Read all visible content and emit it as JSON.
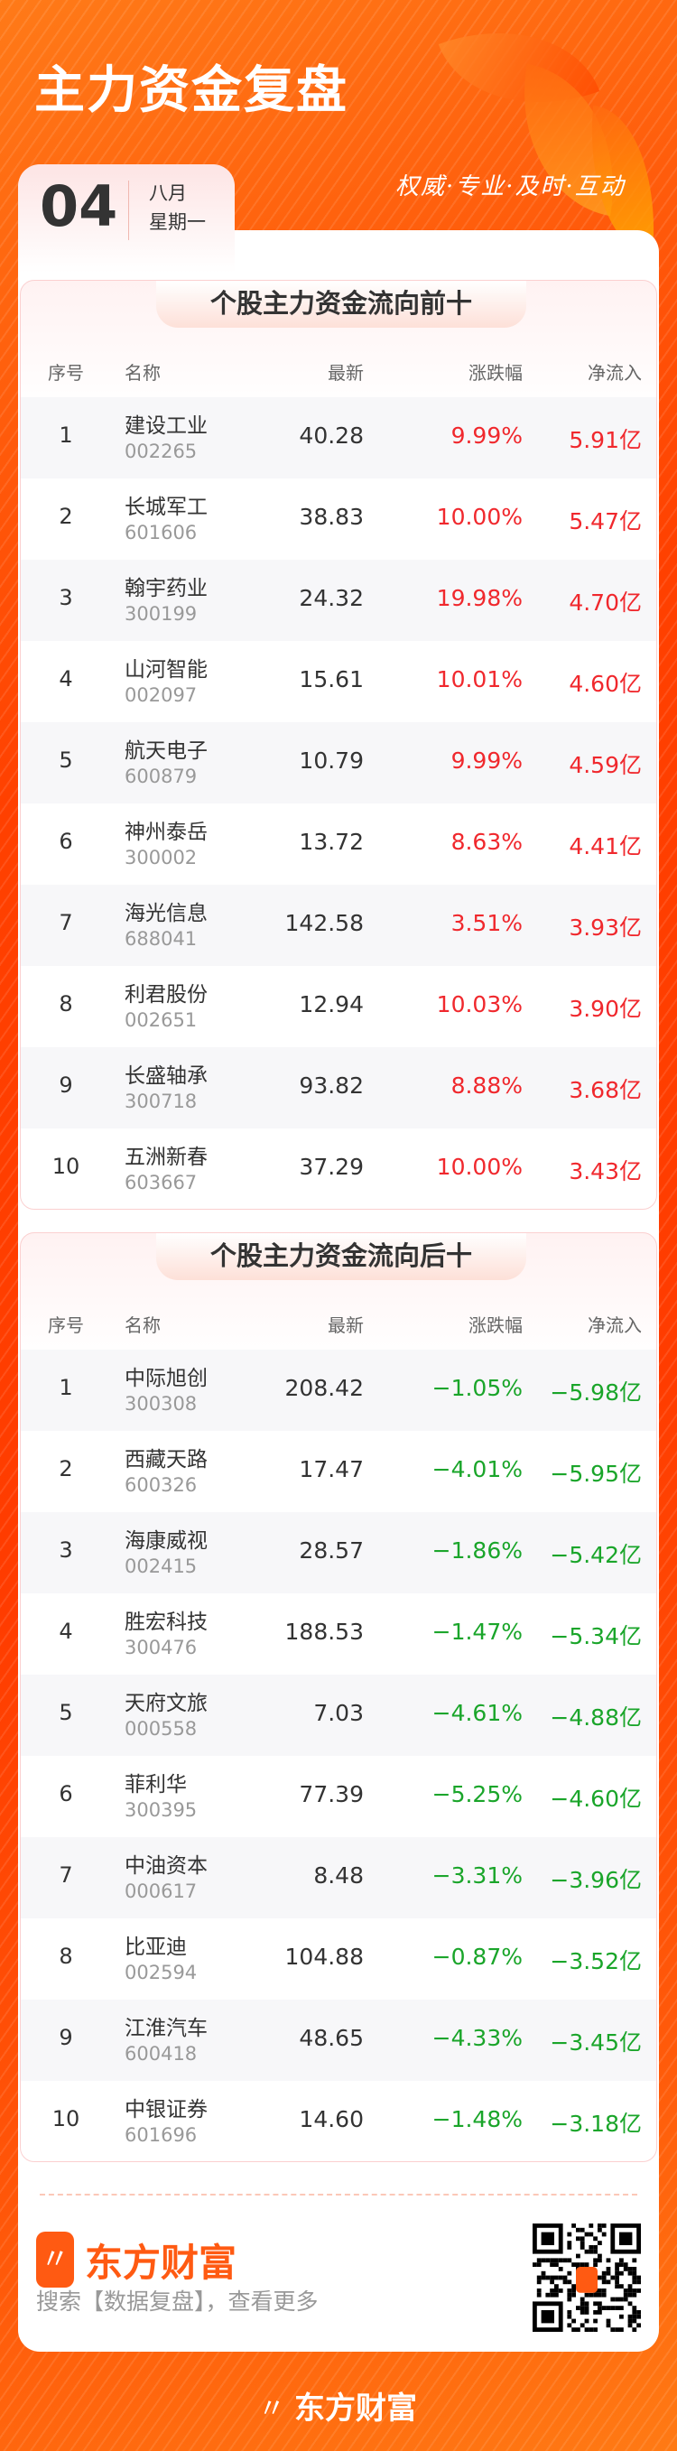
{
  "header": {
    "title": "主力资金复盘",
    "tagline": "权威·专业·及时·互动"
  },
  "date": {
    "day": "04",
    "month": "八月",
    "weekday": "星期一"
  },
  "columns": {
    "seq": "序号",
    "name": "名称",
    "latest": "最新",
    "change": "涨跌幅",
    "net": "净流入"
  },
  "colors": {
    "up": "#f0282d",
    "down": "#1aa52a",
    "brand": "#ff5a12"
  },
  "top": {
    "title": "个股主力资金流向前十",
    "rows": [
      {
        "seq": "1",
        "name": "建设工业",
        "code": "002265",
        "latest": "40.28",
        "change": "9.99%",
        "net": "5.91亿"
      },
      {
        "seq": "2",
        "name": "长城军工",
        "code": "601606",
        "latest": "38.83",
        "change": "10.00%",
        "net": "5.47亿"
      },
      {
        "seq": "3",
        "name": "翰宇药业",
        "code": "300199",
        "latest": "24.32",
        "change": "19.98%",
        "net": "4.70亿"
      },
      {
        "seq": "4",
        "name": "山河智能",
        "code": "002097",
        "latest": "15.61",
        "change": "10.01%",
        "net": "4.60亿"
      },
      {
        "seq": "5",
        "name": "航天电子",
        "code": "600879",
        "latest": "10.79",
        "change": "9.99%",
        "net": "4.59亿"
      },
      {
        "seq": "6",
        "name": "神州泰岳",
        "code": "300002",
        "latest": "13.72",
        "change": "8.63%",
        "net": "4.41亿"
      },
      {
        "seq": "7",
        "name": "海光信息",
        "code": "688041",
        "latest": "142.58",
        "change": "3.51%",
        "net": "3.93亿"
      },
      {
        "seq": "8",
        "name": "利君股份",
        "code": "002651",
        "latest": "12.94",
        "change": "10.03%",
        "net": "3.90亿"
      },
      {
        "seq": "9",
        "name": "长盛轴承",
        "code": "300718",
        "latest": "93.82",
        "change": "8.88%",
        "net": "3.68亿"
      },
      {
        "seq": "10",
        "name": "五洲新春",
        "code": "603667",
        "latest": "37.29",
        "change": "10.00%",
        "net": "3.43亿"
      }
    ]
  },
  "bottom": {
    "title": "个股主力资金流向后十",
    "rows": [
      {
        "seq": "1",
        "name": "中际旭创",
        "code": "300308",
        "latest": "208.42",
        "change": "−1.05%",
        "net": "−5.98亿"
      },
      {
        "seq": "2",
        "name": "西藏天路",
        "code": "600326",
        "latest": "17.47",
        "change": "−4.01%",
        "net": "−5.95亿"
      },
      {
        "seq": "3",
        "name": "海康威视",
        "code": "002415",
        "latest": "28.57",
        "change": "−1.86%",
        "net": "−5.42亿"
      },
      {
        "seq": "4",
        "name": "胜宏科技",
        "code": "300476",
        "latest": "188.53",
        "change": "−1.47%",
        "net": "−5.34亿"
      },
      {
        "seq": "5",
        "name": "天府文旅",
        "code": "000558",
        "latest": "7.03",
        "change": "−4.61%",
        "net": "−4.88亿"
      },
      {
        "seq": "6",
        "name": "菲利华",
        "code": "300395",
        "latest": "77.39",
        "change": "−5.25%",
        "net": "−4.60亿"
      },
      {
        "seq": "7",
        "name": "中油资本",
        "code": "000617",
        "latest": "8.48",
        "change": "−3.31%",
        "net": "−3.96亿"
      },
      {
        "seq": "8",
        "name": "比亚迪",
        "code": "002594",
        "latest": "104.88",
        "change": "−0.87%",
        "net": "−3.52亿"
      },
      {
        "seq": "9",
        "name": "江淮汽车",
        "code": "600418",
        "latest": "48.65",
        "change": "−4.33%",
        "net": "−3.45亿"
      },
      {
        "seq": "10",
        "name": "中银证券",
        "code": "601696",
        "latest": "14.60",
        "change": "−1.48%",
        "net": "−3.18亿"
      }
    ]
  },
  "footer": {
    "brand": "东方财富",
    "search_hint": "搜索【数据复盘】，查看更多",
    "bottom_brand": "东方财富",
    "qr_icon": "qr-code"
  }
}
